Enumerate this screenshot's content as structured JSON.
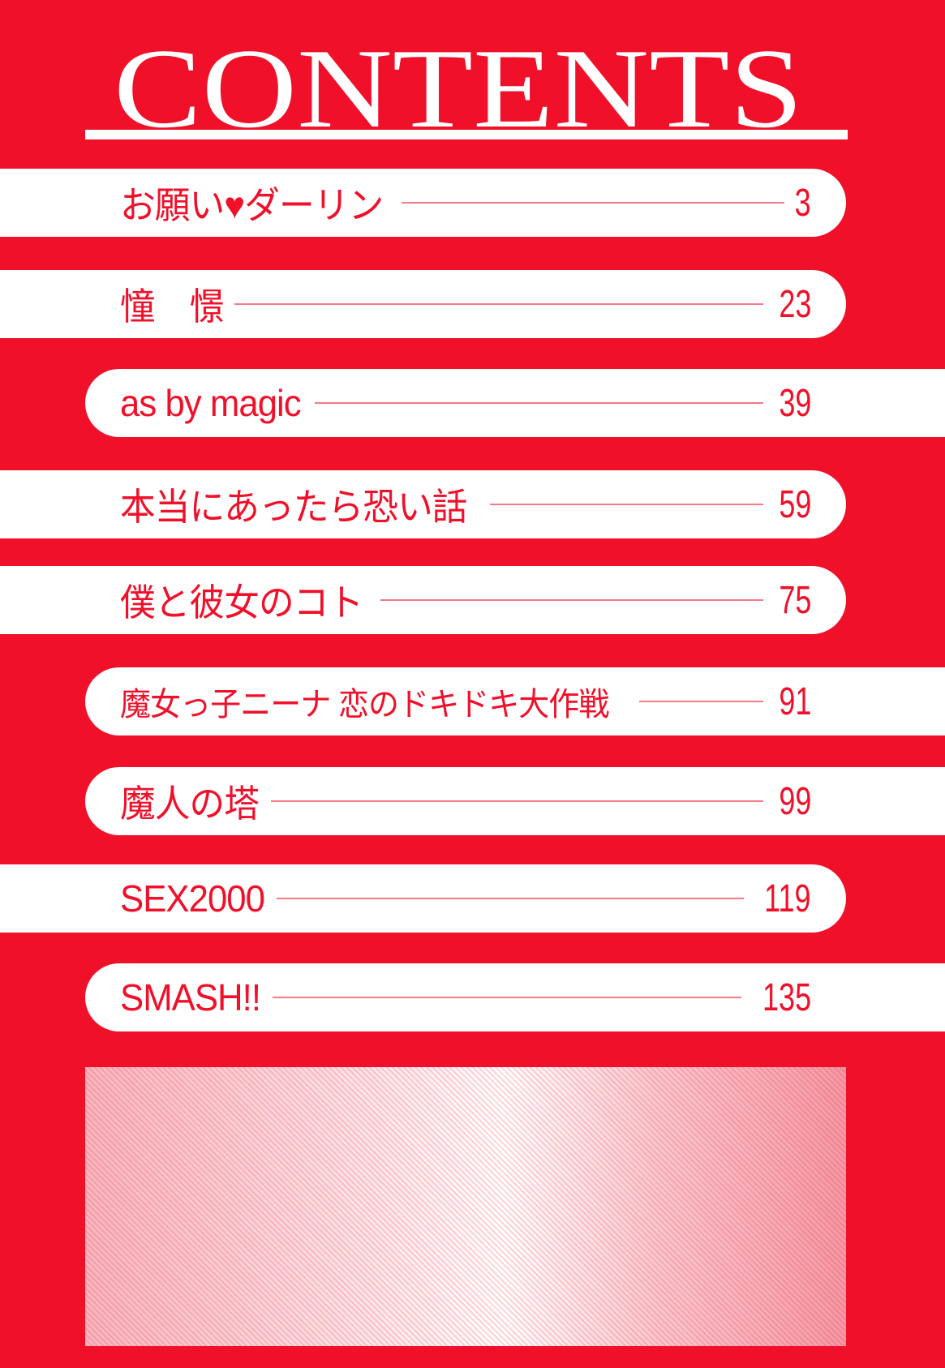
{
  "header": {
    "title": "CONTENTS"
  },
  "colors": {
    "background": "#f0102a",
    "bar": "#ffffff",
    "text": "#f0102a"
  },
  "contents": [
    {
      "title": "お願い♥ダーリン",
      "page": "3"
    },
    {
      "title": "憧　憬",
      "page": "23"
    },
    {
      "title": "as by magic",
      "page": "39"
    },
    {
      "title": "本当にあったら恐い話",
      "page": "59"
    },
    {
      "title": "僕と彼女のコト",
      "page": "75"
    },
    {
      "title": "魔女っ子ニーナ 恋のドキドキ大作戦",
      "page": "91"
    },
    {
      "title": "魔人の塔",
      "page": "99"
    },
    {
      "title": "SEX2000",
      "page": "119"
    },
    {
      "title": "SMASH!!",
      "page": "135"
    }
  ]
}
